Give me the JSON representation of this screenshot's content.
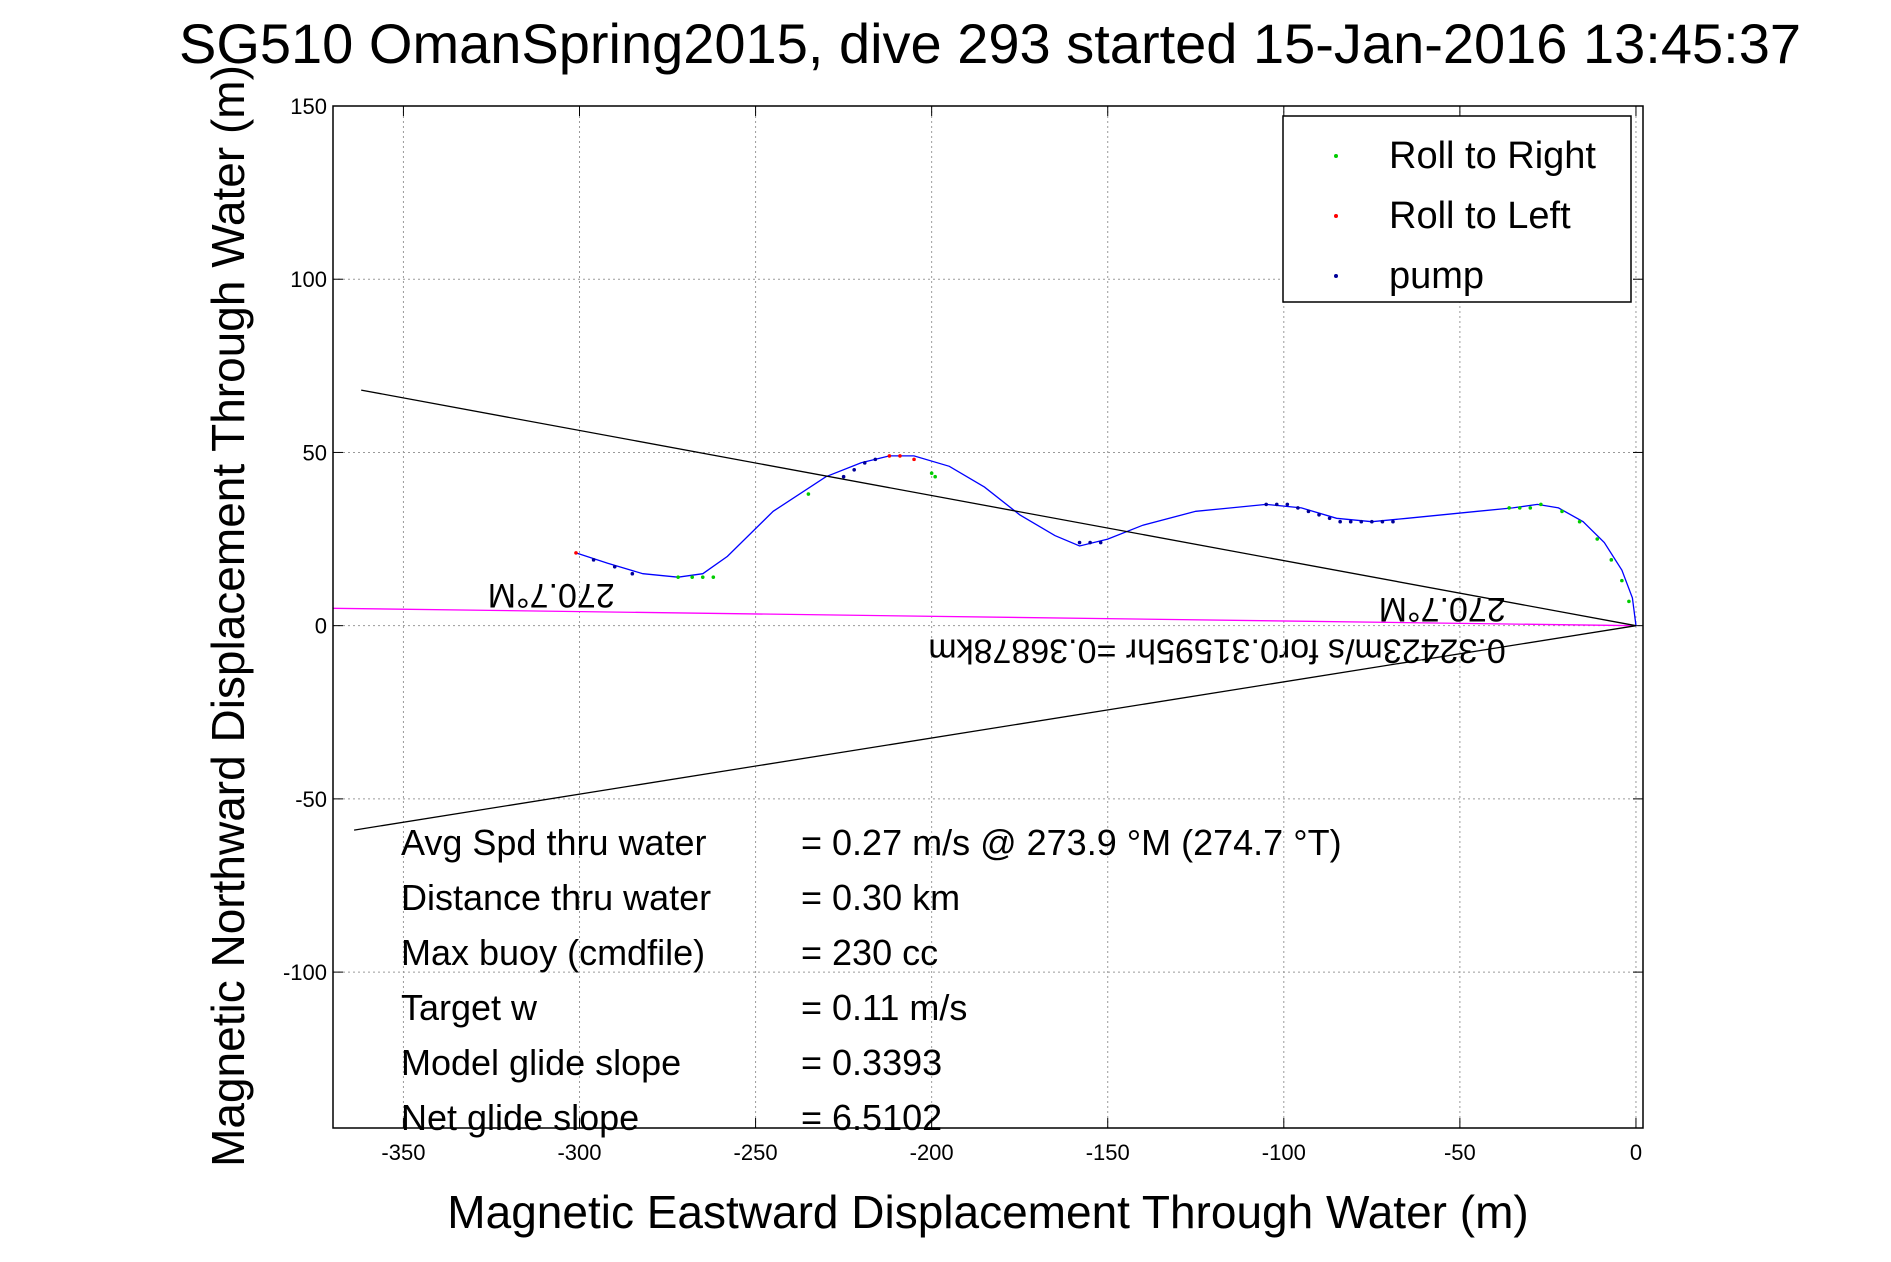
{
  "chart_data": {
    "type": "line",
    "title": "SG510 OmanSpring2015, dive 293 started 15-Jan-2016 13:45:37",
    "xlabel": "Magnetic Eastward Displacement Through Water (m)",
    "ylabel": "Magnetic Northward Displacement Through Water (m)",
    "xlim": [
      -370,
      2
    ],
    "ylim": [
      -145,
      150
    ],
    "xticks": [
      -350,
      -300,
      -250,
      -200,
      -150,
      -100,
      -50,
      0
    ],
    "yticks": [
      -100,
      -50,
      0,
      50,
      100,
      150
    ],
    "grid": true,
    "legend_position": "top-right",
    "series": [
      {
        "name": "Roll to Right",
        "role": "marker",
        "color": "#00cc00",
        "points": [
          [
            -2,
            7
          ],
          [
            -4,
            13
          ],
          [
            -7,
            19
          ],
          [
            -11,
            25
          ],
          [
            -16,
            30
          ],
          [
            -21,
            33
          ],
          [
            -27,
            35
          ],
          [
            -30,
            34
          ],
          [
            -33,
            34
          ],
          [
            -36,
            34
          ],
          [
            -272,
            14
          ],
          [
            -268,
            14
          ],
          [
            -265,
            14
          ],
          [
            -262,
            14
          ],
          [
            -235,
            38
          ],
          [
            -200,
            44
          ],
          [
            -199,
            43
          ]
        ]
      },
      {
        "name": "Roll to Left",
        "role": "marker",
        "color": "#ff0000",
        "points": [
          [
            -301,
            21
          ],
          [
            -212,
            49
          ],
          [
            -209,
            49
          ],
          [
            -205,
            48
          ]
        ]
      },
      {
        "name": "pump",
        "role": "marker",
        "color": "#000099",
        "points": [
          [
            -296,
            19
          ],
          [
            -290,
            17
          ],
          [
            -285,
            15
          ],
          [
            -225,
            43
          ],
          [
            -222,
            45
          ],
          [
            -219,
            47
          ],
          [
            -216,
            48
          ],
          [
            -158,
            24
          ],
          [
            -155,
            24
          ],
          [
            -152,
            24
          ],
          [
            -105,
            35
          ],
          [
            -102,
            35
          ],
          [
            -99,
            35
          ],
          [
            -96,
            34
          ],
          [
            -93,
            33
          ],
          [
            -90,
            32
          ],
          [
            -87,
            31
          ],
          [
            -84,
            30
          ],
          [
            -81,
            30
          ],
          [
            -78,
            30
          ],
          [
            -75,
            30
          ],
          [
            -72,
            30
          ],
          [
            -69,
            30
          ]
        ]
      },
      {
        "name": "track",
        "role": "line",
        "color": "#0000ff",
        "points": [
          [
            0,
            0
          ],
          [
            -1,
            8
          ],
          [
            -4,
            16
          ],
          [
            -9,
            24
          ],
          [
            -15,
            30
          ],
          [
            -22,
            34
          ],
          [
            -28,
            35
          ],
          [
            -35,
            34
          ],
          [
            -45,
            33
          ],
          [
            -55,
            32
          ],
          [
            -65,
            31
          ],
          [
            -75,
            30
          ],
          [
            -85,
            31
          ],
          [
            -95,
            34
          ],
          [
            -105,
            35
          ],
          [
            -115,
            34
          ],
          [
            -125,
            33
          ],
          [
            -140,
            29
          ],
          [
            -150,
            25
          ],
          [
            -158,
            23
          ],
          [
            -165,
            26
          ],
          [
            -175,
            32
          ],
          [
            -185,
            40
          ],
          [
            -195,
            46
          ],
          [
            -205,
            49
          ],
          [
            -212,
            49
          ],
          [
            -220,
            47
          ],
          [
            -230,
            43
          ],
          [
            -245,
            33
          ],
          [
            -258,
            20
          ],
          [
            -265,
            15
          ],
          [
            -272,
            14
          ],
          [
            -282,
            15
          ],
          [
            -292,
            18
          ],
          [
            -301,
            21
          ]
        ]
      },
      {
        "name": "current",
        "role": "line",
        "color": "#ff00ff",
        "points": [
          [
            0,
            0
          ],
          [
            -370,
            5
          ]
        ]
      },
      {
        "name": "cone-upper",
        "role": "line",
        "color": "#000000",
        "points": [
          [
            0,
            0
          ],
          [
            -362,
            68
          ]
        ]
      },
      {
        "name": "cone-lower",
        "role": "line",
        "color": "#000000",
        "points": [
          [
            0,
            0
          ],
          [
            -364,
            -59
          ]
        ]
      }
    ],
    "annotations": [
      {
        "text": "270.7°M",
        "x": -290,
        "y": 12,
        "rotated_deg": 180
      },
      {
        "text": "270.7°M",
        "x": -37,
        "y": 8,
        "rotated_deg": 180
      },
      {
        "text": "0.32423m/s for0.31595hr =0.36878km",
        "x": -37,
        "y": -4,
        "rotated_deg": 180
      }
    ],
    "stats": [
      {
        "label": "Avg Spd thru water",
        "value": "=  0.27 m/s @ 273.9 °M (274.7 °T)"
      },
      {
        "label": "Distance thru water",
        "value": "=  0.30 km"
      },
      {
        "label": "Max buoy (cmdfile)",
        "value": "= 230 cc"
      },
      {
        "label": "Target w",
        "value": "= 0.11 m/s"
      },
      {
        "label": "Model glide slope",
        "value": "= 0.3393"
      },
      {
        "label": "Net glide slope",
        "value": "= 6.5102"
      }
    ]
  }
}
